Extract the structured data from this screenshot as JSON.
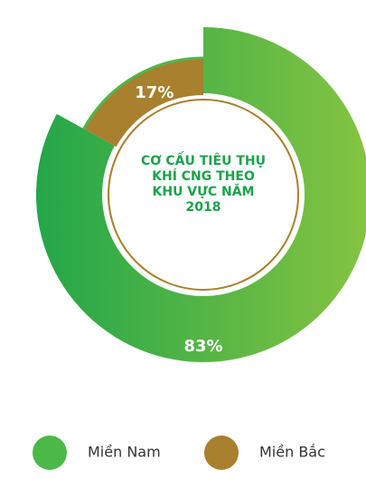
{
  "chart_data": {
    "type": "donut",
    "title": "CƠ CẤU TIÊU THỤ KHÍ CNG THEO KHU VỰC NĂM 2018",
    "categories": [
      "Miền Nam",
      "Miền Bắc"
    ],
    "values": [
      83,
      17
    ],
    "value_labels": [
      "83%",
      "17%"
    ],
    "colors": [
      "#4cb848",
      "#a8802e"
    ]
  }
}
